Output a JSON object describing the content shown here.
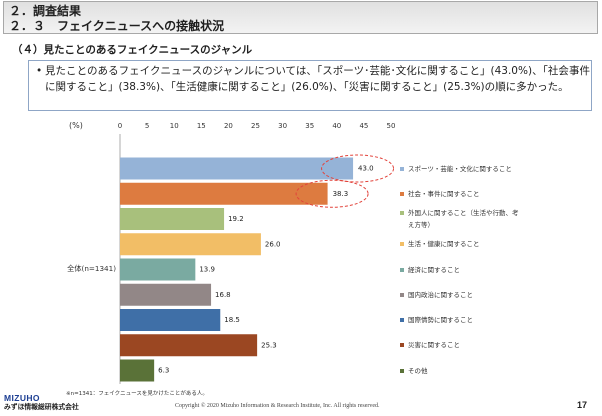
{
  "header": {
    "section": "２．調査結果",
    "subsection": "２．３　フェイクニュースへの接触状況"
  },
  "heading": "（４）見たことのあるフェイクニュースのジャンル",
  "summary": {
    "bullet": "•",
    "text": "見たことのあるフェイクニュースのジャンルについては、「スポーツ･芸能･文化に関すること」(43.0%)、「社会事件に関すること」(38.3%)、「生活健康に関すること」(26.0%)、「災害に関すること」(25.3%)の順に多かった。"
  },
  "chart_data": {
    "type": "bar",
    "orientation": "horizontal",
    "unit_label": "(%)",
    "categories": [
      "全体(n=1341)"
    ],
    "xlim": [
      0,
      50
    ],
    "xticks": [
      0,
      5,
      10,
      15,
      20,
      25,
      30,
      35,
      40,
      45,
      50
    ],
    "grid": false,
    "legend": "right",
    "highlight_color": "#E2433B",
    "series": [
      {
        "name": "スポーツ・芸能・文化に関すること",
        "values": [
          43.0
        ],
        "color": "#95B3D7",
        "highlighted": true
      },
      {
        "name": "社会・事件に関すること",
        "values": [
          38.3
        ],
        "color": "#DD7B40",
        "highlighted": true
      },
      {
        "name": "外国人に関すること（生活や行動、考え方等）",
        "values": [
          19.2
        ],
        "color": "#A8C07C"
      },
      {
        "name": "生活・健康に関すること",
        "values": [
          26.0
        ],
        "color": "#F2BE66"
      },
      {
        "name": "経済に関すること",
        "values": [
          13.9
        ],
        "color": "#7AAAA1"
      },
      {
        "name": "国内政治に関すること",
        "values": [
          16.8
        ],
        "color": "#928787"
      },
      {
        "name": "国際情勢に関すること",
        "values": [
          18.5
        ],
        "color": "#3F6FA7"
      },
      {
        "name": "災害に関すること",
        "values": [
          25.3
        ],
        "color": "#9B4722"
      },
      {
        "name": "その他",
        "values": [
          6.3
        ],
        "color": "#5A7238"
      }
    ],
    "note": "※n=1341：フェイクニュースを見かけたことがある人。"
  },
  "footer": {
    "logo": "MIZUHO",
    "company": "みずほ情報総研株式会社",
    "copyright": "Copyright © 2020 Mizuho Information & Research Institute, Inc. All rights reserved.",
    "page_number": "17",
    "brand_color": "#1B3D92"
  }
}
